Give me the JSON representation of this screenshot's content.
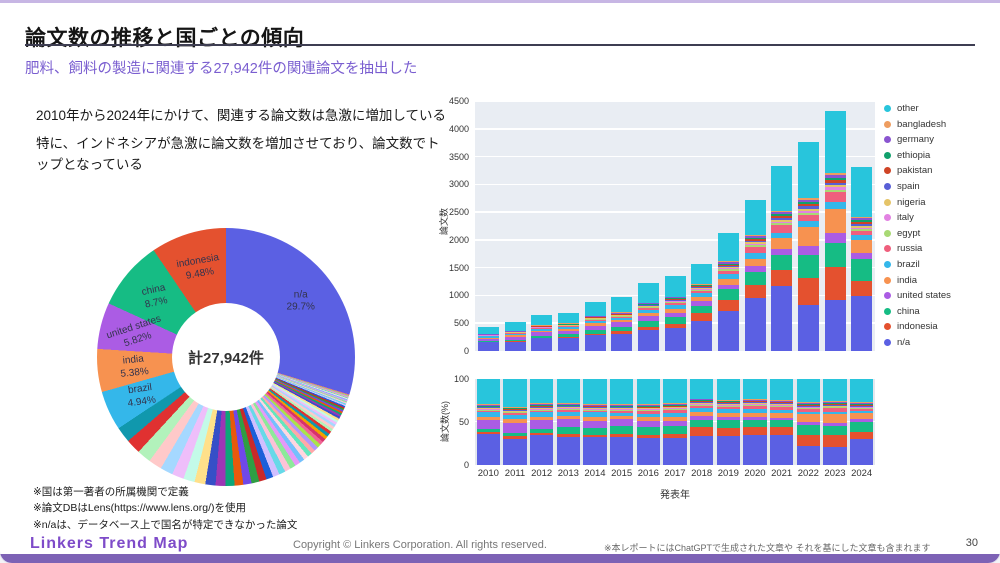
{
  "header": {
    "title": "論文数の推移と国ごとの傾向",
    "subtitle": "肥料、飼料の製造に関連する27,942件の関連論文を抽出した"
  },
  "lead": [
    "2010年から2024年にかけて、関連する論文数は急激に増加している",
    "特に、インドネシアが急激に論文数を増加させており、論文数でトップとなっている"
  ],
  "notes": [
    "※国は第一著者の所属機関で定義",
    "※論文DBはLens(https://www.lens.org/)を使用",
    "※n/aは、データベース上で国名が特定できなかった論文"
  ],
  "footer": {
    "logo": "Linkers Trend Map",
    "copyright": "Copyright © Linkers Corporation. All rights reserved.",
    "note": "※本レポートにはChatGPTで生成された文章や それを基にした文章も含まれます",
    "page": "30"
  },
  "chart_data": [
    {
      "type": "pie",
      "hole": 0.42,
      "center_label": "計27,942件",
      "total_label": "27,942件",
      "slices": [
        {
          "label": "n/a",
          "value_pct": 29.7,
          "color": "#5b60e3"
        },
        {
          "label": "indonesia",
          "value_pct": 9.48,
          "color": "#e4512f"
        },
        {
          "label": "china",
          "value_pct": 8.7,
          "color": "#16bc84"
        },
        {
          "label": "united states",
          "value_pct": 5.82,
          "color": "#ab5ce4"
        },
        {
          "label": "india",
          "value_pct": 5.38,
          "color": "#f79250"
        },
        {
          "label": "brazil",
          "value_pct": 4.94,
          "color": "#34b7ea"
        },
        {
          "label": "(多数の小国・未表示ラベル)",
          "value_pct": 35.98,
          "color": "multi"
        }
      ]
    },
    {
      "type": "bar",
      "stacked": true,
      "ylabel": "論文数",
      "xlabel": "",
      "ylim": [
        0,
        4500
      ],
      "yticks": [
        0,
        500,
        1000,
        1500,
        2000,
        2500,
        3000,
        3500,
        4000,
        4500
      ],
      "grid": true,
      "legend_position": "right",
      "legend_top_to_bottom": [
        "other",
        "bangladesh",
        "germany",
        "ethiopia",
        "pakistan",
        "spain",
        "nigeria",
        "italy",
        "egypt",
        "russia",
        "brazil",
        "india",
        "united states",
        "china",
        "indonesia",
        "n/a"
      ],
      "categories": [
        "2010",
        "2011",
        "2012",
        "2013",
        "2014",
        "2015",
        "2016",
        "2017",
        "2018",
        "2019",
        "2020",
        "2021",
        "2022",
        "2023",
        "2024"
      ],
      "series": [
        {
          "name": "n/a",
          "color": "#5b60e3",
          "values": [
            155,
            160,
            228,
            228,
            285,
            314,
            380,
            420,
            535,
            724,
            952,
            1166,
            830,
            910,
            996
          ]
        },
        {
          "name": "indonesia",
          "color": "#e4512f",
          "values": [
            9,
            16,
            13,
            21,
            27,
            39,
            49,
            68,
            157,
            192,
            245,
            300,
            490,
            610,
            266
          ]
        },
        {
          "name": "china",
          "color": "#16bc84",
          "values": [
            17,
            21,
            33,
            55,
            71,
            88,
            111,
            122,
            126,
            192,
            218,
            266,
            415,
            433,
            398
          ]
        },
        {
          "name": "united states",
          "color": "#ab5ce4",
          "values": [
            43,
            64,
            65,
            62,
            71,
            78,
            86,
            82,
            79,
            85,
            109,
            100,
            151,
            173,
            100
          ]
        },
        {
          "name": "india",
          "color": "#f79250",
          "values": [
            17,
            21,
            26,
            28,
            45,
            39,
            62,
            68,
            79,
            107,
            136,
            200,
            340,
            433,
            232
          ]
        },
        {
          "name": "brazil",
          "color": "#34b7ea",
          "values": [
            22,
            27,
            33,
            35,
            45,
            39,
            49,
            68,
            63,
            85,
            109,
            100,
            113,
            130,
            100
          ]
        },
        {
          "name": "russia",
          "color": "#ef5f7d",
          "values": [
            9,
            11,
            13,
            14,
            18,
            20,
            37,
            41,
            47,
            64,
            109,
            133,
            113,
            173,
            66
          ]
        },
        {
          "name": "egypt",
          "color": "#a8d974",
          "values": [
            4,
            5,
            7,
            7,
            9,
            10,
            12,
            14,
            16,
            21,
            27,
            33,
            38,
            43,
            33
          ]
        },
        {
          "name": "italy",
          "color": "#e282e2",
          "values": [
            4,
            5,
            7,
            7,
            9,
            10,
            12,
            14,
            16,
            21,
            27,
            33,
            38,
            43,
            33
          ]
        },
        {
          "name": "nigeria",
          "color": "#e5c468",
          "values": [
            4,
            5,
            7,
            7,
            9,
            10,
            12,
            14,
            16,
            21,
            27,
            33,
            38,
            43,
            33
          ]
        },
        {
          "name": "spain",
          "color": "#585fd6",
          "values": [
            4,
            5,
            7,
            7,
            9,
            10,
            12,
            14,
            16,
            21,
            27,
            33,
            38,
            43,
            33
          ]
        },
        {
          "name": "pakistan",
          "color": "#cf4426",
          "values": [
            4,
            5,
            7,
            7,
            9,
            10,
            12,
            14,
            16,
            21,
            27,
            33,
            38,
            43,
            33
          ]
        },
        {
          "name": "ethiopia",
          "color": "#11a06c",
          "values": [
            4,
            5,
            7,
            7,
            9,
            10,
            12,
            14,
            16,
            21,
            27,
            33,
            38,
            43,
            33
          ]
        },
        {
          "name": "germany",
          "color": "#8a55d0",
          "values": [
            4,
            5,
            7,
            7,
            9,
            10,
            12,
            14,
            16,
            21,
            27,
            33,
            38,
            43,
            33
          ]
        },
        {
          "name": "bangladesh",
          "color": "#ee9d60",
          "values": [
            4,
            5,
            7,
            7,
            9,
            10,
            12,
            14,
            16,
            21,
            27,
            33,
            38,
            43,
            33
          ]
        },
        {
          "name": "other",
          "color": "#28c5dc",
          "values": [
            126,
            170,
            183,
            191,
            256,
            283,
            360,
            379,
            356,
            513,
            626,
            801,
            1014,
            1124,
            898
          ]
        }
      ]
    },
    {
      "type": "bar",
      "stacked": true,
      "normalized": true,
      "series_ref": 1,
      "ylabel": "論文数(%)",
      "xlabel": "発表年",
      "ylim": [
        0,
        100
      ],
      "yticks": [
        0,
        50,
        100
      ],
      "categories": [
        "2010",
        "2011",
        "2012",
        "2013",
        "2014",
        "2015",
        "2016",
        "2017",
        "2018",
        "2019",
        "2020",
        "2021",
        "2022",
        "2023",
        "2024"
      ]
    }
  ]
}
